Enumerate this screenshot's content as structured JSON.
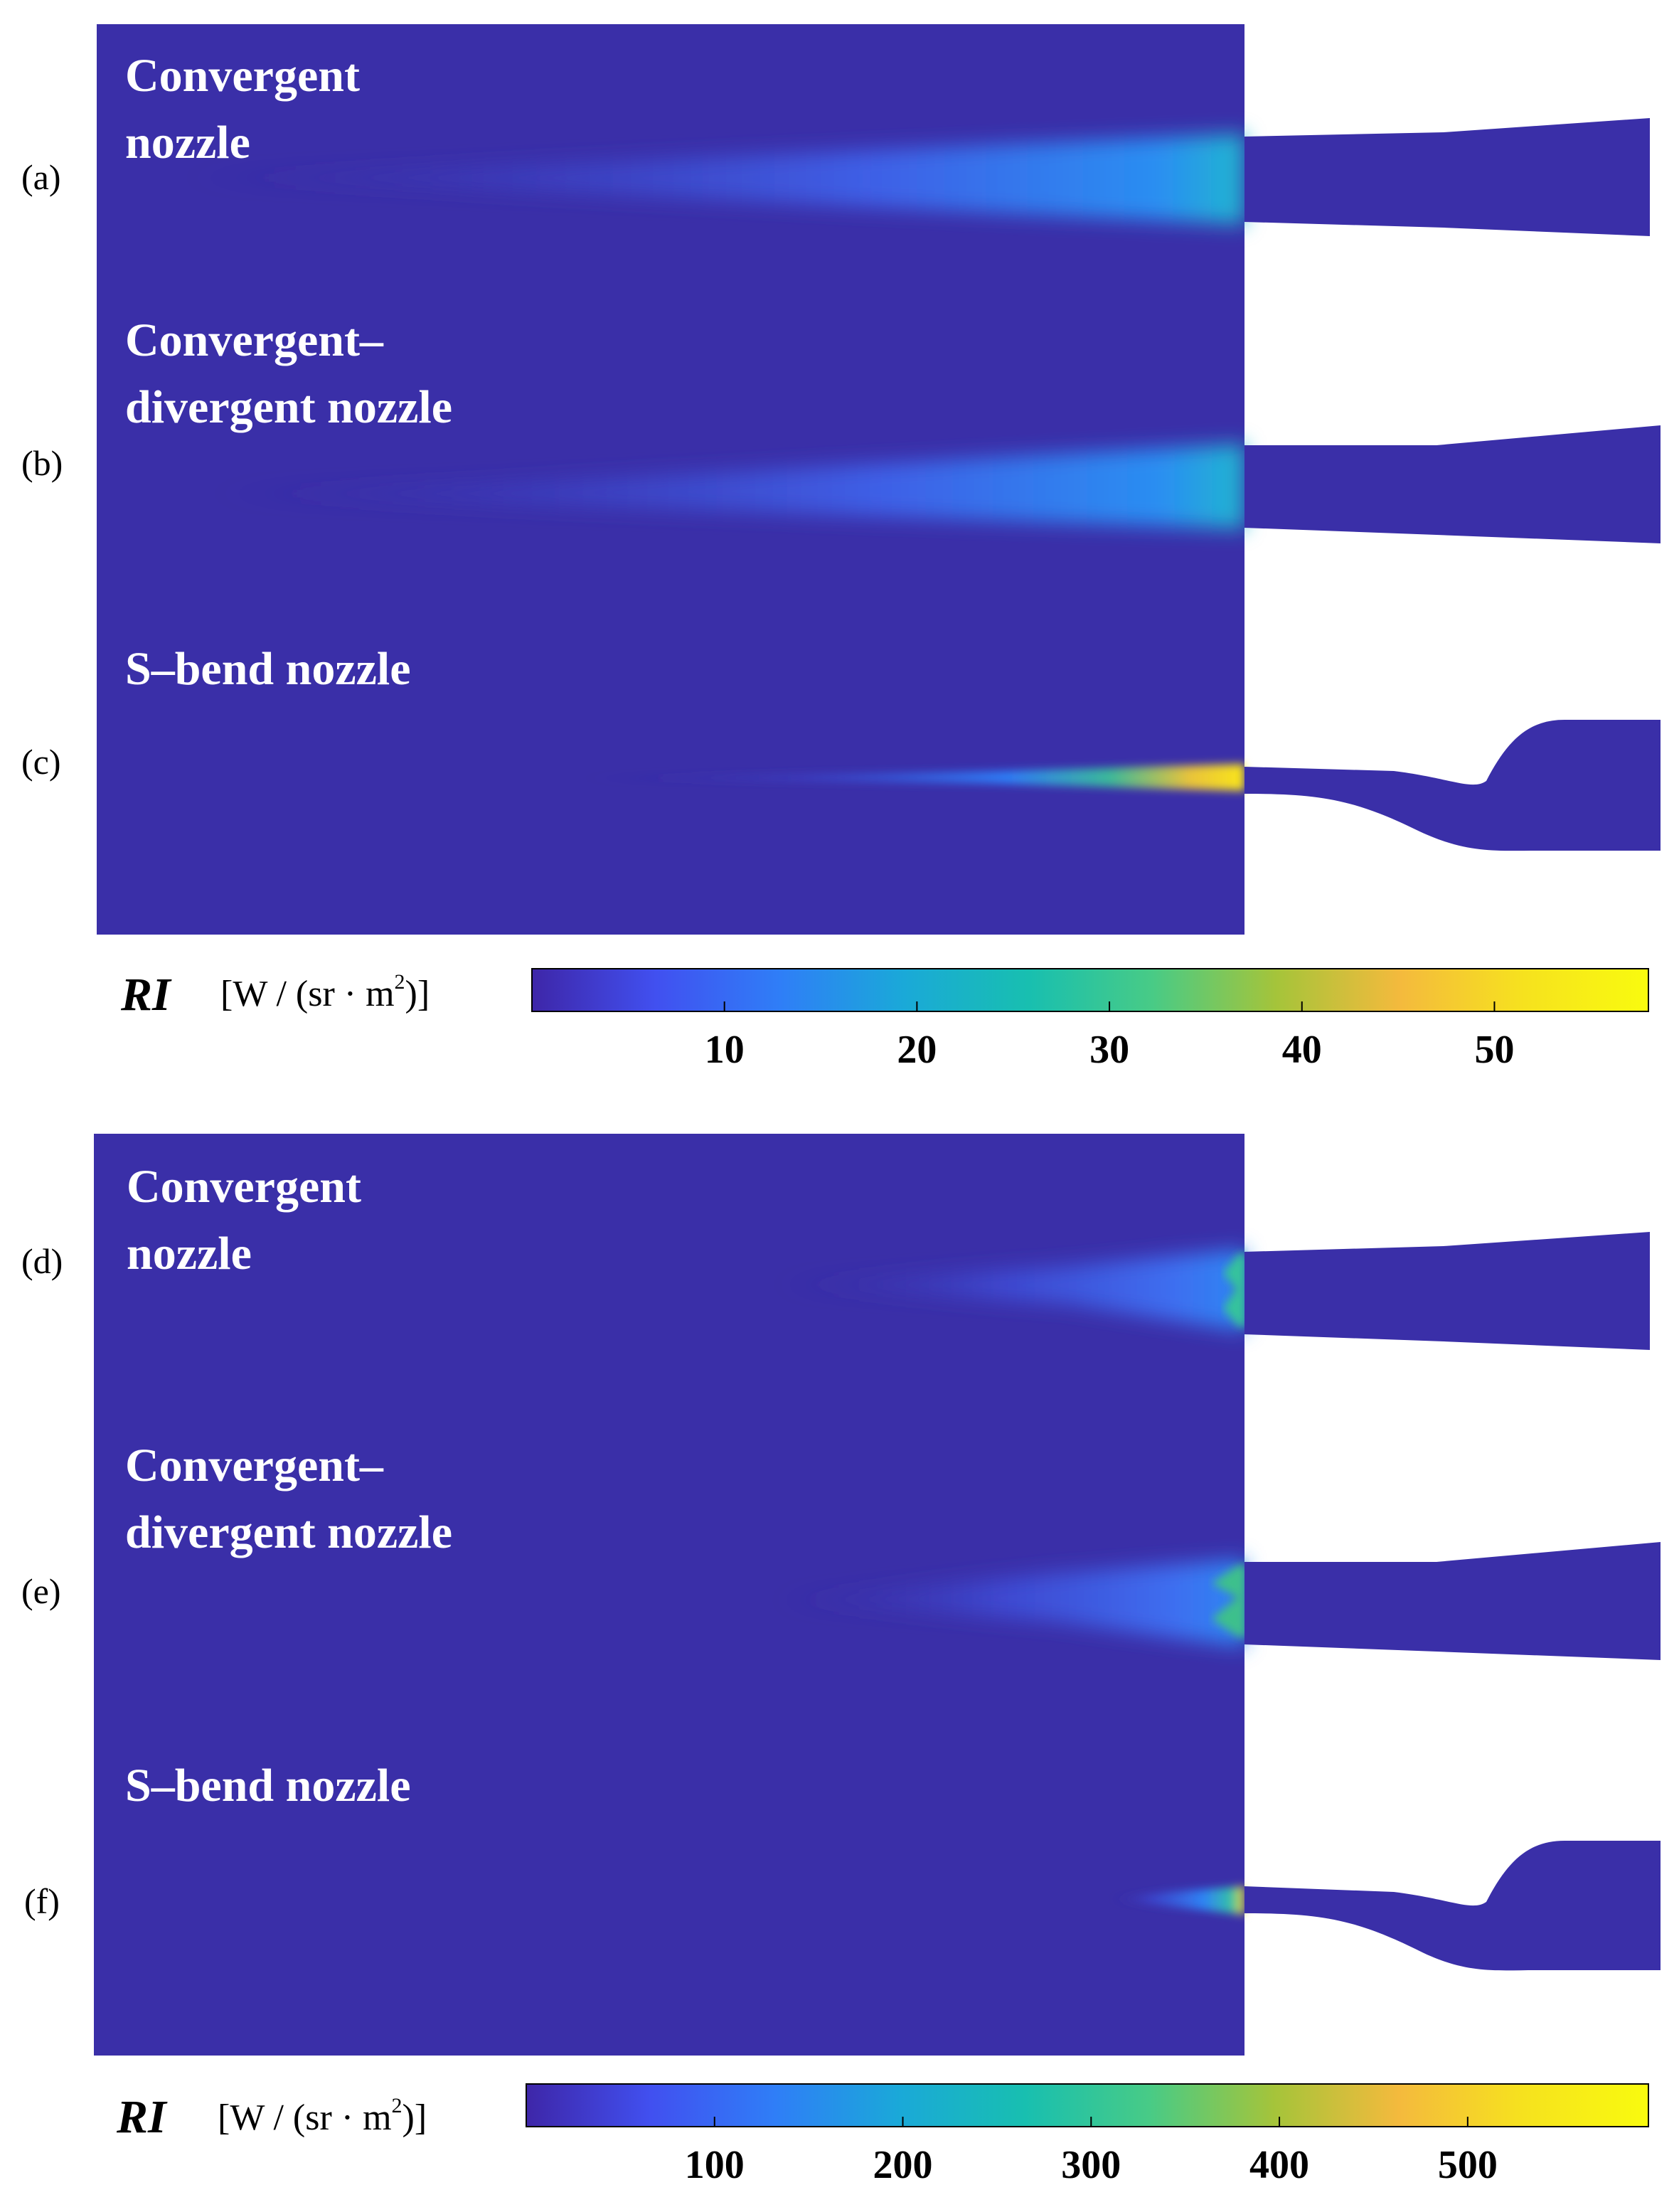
{
  "colors": {
    "background_field": "#3a2fa8",
    "nozzle_wall": "#3a2fa8",
    "colormap": [
      "#3e26a8",
      "#4150f0",
      "#2f7ef7",
      "#1aa9d8",
      "#18bfb0",
      "#48cb86",
      "#a5c43a",
      "#f4ba3d",
      "#f6e21e",
      "#f9fb0e"
    ]
  },
  "top_figure": {
    "panels": [
      {
        "id": "a",
        "letter": "(a)",
        "label_lines": [
          "Convergent",
          "nozzle"
        ],
        "nozzle_shape": "convergent"
      },
      {
        "id": "b",
        "letter": "(b)",
        "label_lines": [
          "Convergent–",
          "divergent nozzle"
        ],
        "nozzle_shape": "convergent-divergent"
      },
      {
        "id": "c",
        "letter": "(c)",
        "label_lines": [
          "S–bend nozzle"
        ],
        "nozzle_shape": "s-bend"
      }
    ],
    "colorbar": {
      "title": "RI",
      "unit_prefix": "[W / (sr · m",
      "unit_sup": "2",
      "unit_suffix": ")]",
      "min": 0,
      "max": 58,
      "ticks": [
        10,
        20,
        30,
        40,
        50
      ],
      "tick_labels": [
        "10",
        "20",
        "30",
        "40",
        "50"
      ]
    }
  },
  "bottom_figure": {
    "panels": [
      {
        "id": "d",
        "letter": "(d)",
        "label_lines": [
          "Convergent",
          "nozzle"
        ],
        "nozzle_shape": "convergent"
      },
      {
        "id": "e",
        "letter": "(e)",
        "label_lines": [
          "Convergent–",
          "divergent nozzle"
        ],
        "nozzle_shape": "convergent-divergent"
      },
      {
        "id": "f",
        "letter": "(f)",
        "label_lines": [
          "S–bend nozzle"
        ],
        "nozzle_shape": "s-bend"
      }
    ],
    "colorbar": {
      "title": "RI",
      "unit_prefix": "[W / (sr · m",
      "unit_sup": "2",
      "unit_suffix": ")]",
      "min": 0,
      "max": 596,
      "ticks": [
        100,
        200,
        300,
        400,
        500
      ],
      "tick_labels": [
        "100",
        "200",
        "300",
        "400",
        "500"
      ]
    }
  }
}
